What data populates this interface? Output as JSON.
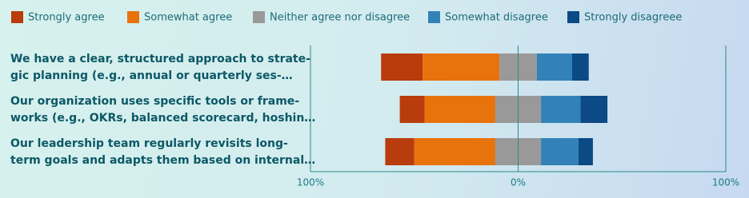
{
  "chart_data": {
    "type": "diverging-bar",
    "categories": [
      [
        "We have a clear, structured approach to strate-",
        "gic planning (e.g., annual or quarterly ses-…"
      ],
      [
        "Our organization uses specific tools or frame-",
        "works (e.g., OKRs, balanced scorecard, hoshin…"
      ],
      [
        "Our leadership team regularly revisits long-",
        "term goals and adapts them based on internal…"
      ]
    ],
    "series": [
      {
        "name": "Strongly agree",
        "color": "#b83c0c",
        "values": [
          20,
          12,
          14
        ]
      },
      {
        "name": "Somewhat agree",
        "color": "#e8720c",
        "values": [
          37,
          34,
          39
        ]
      },
      {
        "name": "Neither agree nor disagree",
        "color": "#999999",
        "values": [
          18,
          22,
          22
        ]
      },
      {
        "name": "Somewhat disagree",
        "color": "#3282b8",
        "values": [
          17,
          19,
          18
        ]
      },
      {
        "name": "Strongly disagreee",
        "color": "#0b4a84",
        "values": [
          8,
          13,
          7
        ]
      }
    ],
    "xlim": [
      -100,
      100
    ],
    "xticks": [
      {
        "value": -100,
        "label": "100%"
      },
      {
        "value": 0,
        "label": "0%"
      },
      {
        "value": 100,
        "label": "100%"
      }
    ],
    "grid": true,
    "legend": "top"
  }
}
